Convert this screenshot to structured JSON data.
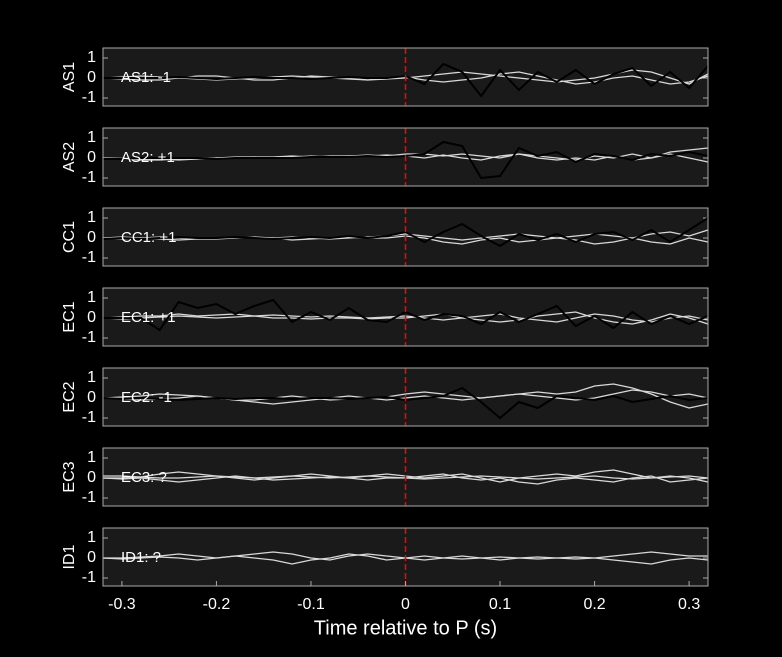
{
  "chart_data": [
    {
      "type": "line",
      "ylabel": "AS1",
      "annotation": "AS1: -1",
      "annotation_color": "#1a1ac8",
      "vline": 0,
      "vline_color": "#ff0000",
      "xlim": [
        -0.32,
        0.32
      ],
      "ylim": [
        -1.4,
        1.5
      ],
      "yticks": [
        -1,
        0,
        1
      ],
      "x": [
        -0.32,
        -0.3,
        -0.28,
        -0.26,
        -0.24,
        -0.22,
        -0.2,
        -0.18,
        -0.16,
        -0.14,
        -0.12,
        -0.1,
        -0.08,
        -0.06,
        -0.04,
        -0.02,
        0,
        0.02,
        0.04,
        0.06,
        0.08,
        0.1,
        0.12,
        0.14,
        0.16,
        0.18,
        0.2,
        0.22,
        0.24,
        0.26,
        0.28,
        0.3,
        0.32
      ],
      "series": [
        {
          "color": "#d9d9d9",
          "values": [
            0,
            0.05,
            0.1,
            0.05,
            0,
            -0.05,
            -0.1,
            -0.05,
            0,
            0.05,
            0.1,
            0.05,
            0,
            -0.05,
            -0.1,
            -0.05,
            0,
            0.1,
            0.2,
            0.3,
            0.2,
            0.1,
            0,
            -0.1,
            -0.2,
            -0.1,
            0,
            0.2,
            0.4,
            0.3,
            0,
            -0.3,
            0.2
          ]
        },
        {
          "color": "#d9d9d9",
          "values": [
            0,
            -0.05,
            -0.1,
            -0.1,
            0,
            0.1,
            0.1,
            0,
            -0.1,
            -0.1,
            0,
            0.1,
            0.05,
            0,
            -0.1,
            0,
            0.05,
            -0.1,
            -0.2,
            -0.1,
            0,
            0.2,
            0.3,
            0.1,
            -0.1,
            -0.3,
            -0.2,
            0,
            0.1,
            -0.1,
            -0.3,
            -0.2,
            0.1
          ]
        },
        {
          "color": "#000000",
          "values": [
            0,
            0,
            0,
            0,
            0.05,
            0,
            -0.05,
            0,
            0.05,
            0,
            0,
            -0.05,
            0,
            0.05,
            0,
            0,
            0.1,
            -0.3,
            0.7,
            0.3,
            -0.9,
            0.4,
            -0.6,
            0.3,
            -0.2,
            0.4,
            -0.3,
            0.2,
            0.5,
            -0.4,
            0.3,
            -0.5,
            0.6
          ]
        }
      ]
    },
    {
      "type": "line",
      "ylabel": "AS2",
      "annotation": "AS2: +1",
      "annotation_color": "#cc1414",
      "vline": 0,
      "vline_color": "#ff0000",
      "xlim": [
        -0.32,
        0.32
      ],
      "ylim": [
        -1.4,
        1.5
      ],
      "yticks": [
        -1,
        0,
        1
      ],
      "x": [
        -0.32,
        -0.3,
        -0.28,
        -0.26,
        -0.24,
        -0.22,
        -0.2,
        -0.18,
        -0.16,
        -0.14,
        -0.12,
        -0.1,
        -0.08,
        -0.06,
        -0.04,
        -0.02,
        0,
        0.02,
        0.04,
        0.06,
        0.08,
        0.1,
        0.12,
        0.14,
        0.16,
        0.18,
        0.2,
        0.22,
        0.24,
        0.26,
        0.28,
        0.3,
        0.32
      ],
      "series": [
        {
          "color": "#d9d9d9",
          "values": [
            0,
            -0.02,
            -0.05,
            -0.05,
            -0.1,
            -0.05,
            0,
            0,
            0.05,
            0.05,
            0.1,
            0.05,
            0.1,
            0.1,
            0.15,
            0.1,
            0.2,
            0.2,
            0.1,
            0.2,
            0.1,
            0,
            0.2,
            0.1,
            0,
            -0.1,
            0.1,
            0,
            0.2,
            0,
            0.3,
            0.4,
            0.5
          ]
        },
        {
          "color": "#d9d9d9",
          "values": [
            0,
            -0.05,
            -0.1,
            -0.1,
            -0.05,
            0,
            0,
            0.05,
            0.05,
            0,
            0.05,
            0.1,
            0.05,
            0.1,
            0.1,
            0.15,
            0.1,
            0,
            0.15,
            0,
            -0.1,
            0.1,
            0.2,
            0,
            -0.1,
            0,
            -0.1,
            0.1,
            -0.1,
            0,
            0.2,
            0,
            -0.2
          ]
        },
        {
          "color": "#000000",
          "values": [
            -0.05,
            -0.05,
            0,
            0,
            0,
            0,
            -0.05,
            0,
            0,
            0,
            0,
            0.05,
            0.05,
            0.05,
            0.1,
            0.05,
            0.1,
            0.2,
            0.8,
            0.6,
            -1.0,
            -0.9,
            0.5,
            0.1,
            0.3,
            -0.2,
            0.2,
            0.1,
            -0.1,
            0.2,
            0.1,
            0.3,
            0.1
          ]
        }
      ]
    },
    {
      "type": "line",
      "ylabel": "CC1",
      "annotation": "CC1: +1",
      "annotation_color": "#cc1414",
      "vline": 0,
      "vline_color": "#ff0000",
      "xlim": [
        -0.32,
        0.32
      ],
      "ylim": [
        -1.4,
        1.5
      ],
      "yticks": [
        -1,
        0,
        1
      ],
      "x": [
        -0.32,
        -0.3,
        -0.28,
        -0.26,
        -0.24,
        -0.22,
        -0.2,
        -0.18,
        -0.16,
        -0.14,
        -0.12,
        -0.1,
        -0.08,
        -0.06,
        -0.04,
        -0.02,
        0,
        0.02,
        0.04,
        0.06,
        0.08,
        0.1,
        0.12,
        0.14,
        0.16,
        0.18,
        0.2,
        0.22,
        0.24,
        0.26,
        0.28,
        0.3,
        0.32
      ],
      "series": [
        {
          "color": "#d9d9d9",
          "values": [
            0,
            0.05,
            0,
            -0.05,
            -0.1,
            -0.05,
            0,
            0.05,
            0,
            0,
            0.05,
            0,
            -0.05,
            0,
            0.05,
            0.1,
            0.2,
            0.1,
            0,
            -0.1,
            0,
            0.1,
            0.2,
            0.1,
            0,
            0.1,
            0.2,
            0.1,
            0,
            0.2,
            0.3,
            0.1,
            0.4
          ]
        },
        {
          "color": "#d9d9d9",
          "values": [
            0,
            -0.05,
            0,
            0.05,
            0,
            -0.05,
            -0.05,
            0,
            0.05,
            0,
            -0.1,
            -0.05,
            0,
            0.05,
            0,
            0,
            0.1,
            0,
            -0.2,
            -0.3,
            -0.1,
            0,
            -0.2,
            -0.1,
            0,
            -0.1,
            -0.3,
            -0.2,
            0,
            -0.2,
            -0.3,
            0,
            -0.2
          ]
        },
        {
          "color": "#000000",
          "values": [
            -0.05,
            0,
            -0.05,
            0,
            0.05,
            0,
            0,
            0.05,
            0,
            -0.05,
            0,
            0.05,
            0,
            0.1,
            0,
            0.1,
            0.3,
            -0.2,
            0.3,
            0.7,
            0.1,
            -0.4,
            0.2,
            -0.1,
            0.2,
            -0.2,
            0.2,
            0.3,
            -0.1,
            0.4,
            -0.2,
            0.4,
            1.0
          ]
        }
      ]
    },
    {
      "type": "line",
      "ylabel": "EC1",
      "annotation": "EC1: +1",
      "annotation_color": "#cc1414",
      "vline": 0,
      "vline_color": "#ff0000",
      "xlim": [
        -0.32,
        0.32
      ],
      "ylim": [
        -1.4,
        1.5
      ],
      "yticks": [
        -1,
        0,
        1
      ],
      "x": [
        -0.32,
        -0.3,
        -0.28,
        -0.26,
        -0.24,
        -0.22,
        -0.2,
        -0.18,
        -0.16,
        -0.14,
        -0.12,
        -0.1,
        -0.08,
        -0.06,
        -0.04,
        -0.02,
        0,
        0.02,
        0.04,
        0.06,
        0.08,
        0.1,
        0.12,
        0.14,
        0.16,
        0.18,
        0.2,
        0.22,
        0.24,
        0.26,
        0.28,
        0.3,
        0.32
      ],
      "series": [
        {
          "color": "#d9d9d9",
          "values": [
            0,
            0.05,
            0.1,
            0.1,
            0.2,
            0.1,
            0.15,
            0.2,
            0.1,
            0.15,
            0.1,
            0.05,
            0.1,
            0.05,
            0,
            0.05,
            0.1,
            0,
            -0.1,
            0,
            0.1,
            0.2,
            0,
            -0.1,
            -0.2,
            0,
            0.2,
            0.1,
            -0.1,
            -0.2,
            0,
            0.1,
            -0.1
          ]
        },
        {
          "color": "#d9d9d9",
          "values": [
            0,
            -0.05,
            0,
            0.05,
            0.1,
            0.05,
            0,
            0.05,
            0.1,
            0,
            0,
            -0.05,
            0,
            0,
            -0.05,
            0,
            0,
            0.1,
            0.2,
            0,
            -0.1,
            -0.2,
            -0.1,
            0.1,
            0.2,
            0.3,
            0,
            -0.2,
            -0.3,
            -0.1,
            0.2,
            0,
            -0.3
          ]
        },
        {
          "color": "#000000",
          "values": [
            0,
            0,
            0,
            -0.6,
            0.8,
            0.5,
            0.7,
            0.2,
            0.6,
            0.9,
            -0.2,
            0.3,
            -0.1,
            0.5,
            -0.1,
            -0.2,
            0.3,
            -0.1,
            0.2,
            0.1,
            -0.3,
            0.3,
            -0.2,
            0.2,
            0.6,
            -0.4,
            0.1,
            -0.5,
            0.3,
            -0.3,
            0.1,
            -0.3,
            0.1
          ]
        }
      ]
    },
    {
      "type": "line",
      "ylabel": "EC2",
      "annotation": "EC2: -1",
      "annotation_color": "#1a1ac8",
      "vline": 0,
      "vline_color": "#ff0000",
      "xlim": [
        -0.32,
        0.32
      ],
      "ylim": [
        -1.4,
        1.5
      ],
      "yticks": [
        -1,
        0,
        1
      ],
      "x": [
        -0.32,
        -0.3,
        -0.28,
        -0.26,
        -0.24,
        -0.22,
        -0.2,
        -0.18,
        -0.16,
        -0.14,
        -0.12,
        -0.1,
        -0.08,
        -0.06,
        -0.04,
        -0.02,
        0,
        0.02,
        0.04,
        0.06,
        0.08,
        0.1,
        0.12,
        0.14,
        0.16,
        0.18,
        0.2,
        0.22,
        0.24,
        0.26,
        0.28,
        0.3,
        0.32
      ],
      "series": [
        {
          "color": "#d9d9d9",
          "values": [
            0,
            0.05,
            0.1,
            0.2,
            0.15,
            0.1,
            0,
            -0.1,
            -0.1,
            0,
            0.1,
            0,
            -0.1,
            -0.05,
            0,
            0.05,
            0.2,
            0.3,
            0.2,
            0.1,
            0,
            0.1,
            0.2,
            0.3,
            0.2,
            0.3,
            0.6,
            0.7,
            0.5,
            0.2,
            -0.2,
            -0.5,
            -0.3
          ]
        },
        {
          "color": "#d9d9d9",
          "values": [
            0,
            -0.05,
            -0.1,
            -0.05,
            0,
            0.1,
            0,
            -0.1,
            -0.2,
            -0.3,
            -0.2,
            -0.1,
            0,
            0.1,
            0,
            -0.1,
            0,
            0.1,
            0,
            -0.1,
            0,
            0.1,
            0.2,
            0.1,
            0,
            -0.1,
            0,
            0.2,
            0.4,
            0.3,
            0.1,
            0.2,
            0
          ]
        },
        {
          "color": "#000000",
          "values": [
            0,
            -0.05,
            0,
            -0.05,
            -0.1,
            -0.05,
            0,
            -0.05,
            0,
            0,
            -0.05,
            0,
            0,
            -0.05,
            0,
            0.05,
            -0.1,
            0,
            0.1,
            0.5,
            -0.2,
            -1.0,
            -0.2,
            -0.5,
            0.1,
            0,
            -0.1,
            0.1,
            -0.2,
            -0.05,
            0.1,
            -0.1,
            0
          ]
        }
      ]
    },
    {
      "type": "line",
      "ylabel": "EC3",
      "annotation": "EC3: ?",
      "annotation_color": "#9a9a9a",
      "vline": 0,
      "vline_color": "#ff0000",
      "xlim": [
        -0.32,
        0.32
      ],
      "ylim": [
        -1.4,
        1.5
      ],
      "yticks": [
        -1,
        0,
        1
      ],
      "x": [
        -0.32,
        -0.3,
        -0.28,
        -0.26,
        -0.24,
        -0.22,
        -0.2,
        -0.18,
        -0.16,
        -0.14,
        -0.12,
        -0.1,
        -0.08,
        -0.06,
        -0.04,
        -0.02,
        0,
        0.02,
        0.04,
        0.06,
        0.08,
        0.1,
        0.12,
        0.14,
        0.16,
        0.18,
        0.2,
        0.22,
        0.24,
        0.26,
        0.28,
        0.3,
        0.32
      ],
      "series": [
        {
          "color": "#d9d9d9",
          "values": [
            0.1,
            0.1,
            0.05,
            0.2,
            0.3,
            0.2,
            0.1,
            0,
            -0.1,
            0,
            0.1,
            0.2,
            0.1,
            0,
            0.1,
            0.2,
            0.1,
            0,
            0.1,
            0.2,
            0,
            -0.2,
            0,
            0.1,
            0.2,
            0.1,
            0.3,
            0.4,
            0.2,
            0,
            0.1,
            0,
            -0.2
          ]
        },
        {
          "color": "#d9d9d9",
          "values": [
            0,
            -0.05,
            0,
            -0.1,
            -0.2,
            -0.1,
            0,
            0.1,
            0,
            -0.1,
            -0.05,
            0,
            0.05,
            0,
            -0.1,
            0,
            0,
            0.1,
            0.2,
            0,
            -0.1,
            0,
            -0.2,
            -0.3,
            -0.1,
            0,
            -0.1,
            -0.2,
            0,
            0.1,
            -0.2,
            -0.1,
            0
          ]
        },
        {
          "color": "#d9d9d9",
          "values": [
            0,
            0,
            0.05,
            0,
            0,
            0.05,
            0.1,
            0.05,
            0,
            0.05,
            0.1,
            0.05,
            0,
            0.05,
            0.1,
            0.05,
            0,
            -0.05,
            0,
            0.05,
            0.1,
            0.05,
            0,
            -0.05,
            0,
            0.05,
            0.1,
            0,
            -0.05,
            0,
            0.05,
            0.1,
            0
          ]
        }
      ]
    },
    {
      "type": "line",
      "ylabel": "ID1",
      "annotation": "ID1: ?",
      "annotation_color": "#9a9a9a",
      "vline": 0,
      "vline_color": "#ff0000",
      "xlim": [
        -0.32,
        0.32
      ],
      "ylim": [
        -1.4,
        1.5
      ],
      "yticks": [
        -1,
        0,
        1
      ],
      "xticks": [
        -0.3,
        -0.2,
        -0.1,
        0,
        0.1,
        0.2,
        0.3
      ],
      "xlabel": "Time relative to P (s)",
      "x": [
        -0.32,
        -0.3,
        -0.28,
        -0.26,
        -0.24,
        -0.22,
        -0.2,
        -0.18,
        -0.16,
        -0.14,
        -0.12,
        -0.1,
        -0.08,
        -0.06,
        -0.04,
        -0.02,
        0,
        0.02,
        0.04,
        0.06,
        0.08,
        0.1,
        0.12,
        0.14,
        0.16,
        0.18,
        0.2,
        0.22,
        0.24,
        0.26,
        0.28,
        0.3,
        0.32
      ],
      "series": [
        {
          "color": "#d9d9d9",
          "values": [
            0,
            0,
            0.05,
            0.1,
            0.2,
            0.1,
            0,
            0.1,
            0.2,
            0.3,
            0.2,
            0,
            -0.1,
            0.1,
            0.2,
            0.1,
            0,
            -0.1,
            0,
            0.1,
            0,
            -0.1,
            0,
            0.05,
            0,
            -0.05,
            0,
            0.1,
            0.2,
            0.3,
            0.2,
            0.1,
            0.1
          ]
        },
        {
          "color": "#d9d9d9",
          "values": [
            0,
            -0.05,
            0,
            0.05,
            0,
            -0.1,
            0,
            0.1,
            0,
            -0.1,
            -0.3,
            -0.1,
            0,
            0.2,
            0.1,
            -0.1,
            0,
            0.1,
            0,
            -0.05,
            0,
            0.05,
            0,
            -0.05,
            0,
            0.05,
            0,
            -0.1,
            -0.2,
            -0.3,
            -0.1,
            0,
            -0.1
          ]
        }
      ]
    }
  ]
}
